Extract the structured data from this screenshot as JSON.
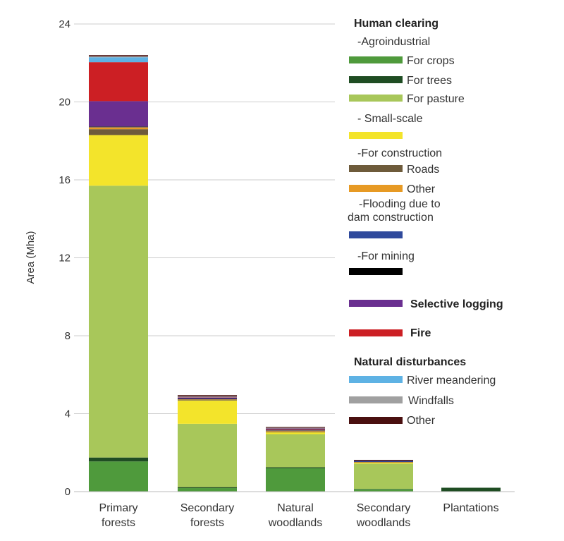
{
  "chart_data": {
    "type": "bar",
    "stacked": true,
    "title": "",
    "xlabel": "",
    "ylabel": "Area (Mha)",
    "ylim": [
      0,
      24
    ],
    "yticks": [
      0,
      4,
      8,
      12,
      16,
      20,
      24
    ],
    "grid": true,
    "legend_position": "right",
    "categories": [
      "Primary\nforests",
      "Secondary\nforests",
      "Natural\nwoodlands",
      "Secondary\nwoodlands",
      "Plantations"
    ],
    "series": [
      {
        "name": "For crops",
        "color": "#4f9a3c",
        "values": [
          1.55,
          0.18,
          1.2,
          0.12,
          0.02
        ]
      },
      {
        "name": "For trees",
        "color": "#1f4d23",
        "values": [
          0.2,
          0.05,
          0.05,
          0.02,
          0.18
        ]
      },
      {
        "name": "For pasture",
        "color": "#a8c75a",
        "values": [
          13.95,
          3.25,
          1.7,
          1.3,
          0.0
        ]
      },
      {
        "name": "Small-scale",
        "color": "#f3e42b",
        "values": [
          2.6,
          1.2,
          0.1,
          0.05,
          0.0
        ]
      },
      {
        "name": "Roads",
        "color": "#6e5b3b",
        "values": [
          0.3,
          0.04,
          0.04,
          0.02,
          0.0
        ]
      },
      {
        "name": "Other",
        "color": "#e79a24",
        "values": [
          0.1,
          0.02,
          0.04,
          0.01,
          0.0
        ]
      },
      {
        "name": "Flooding due to dam construction",
        "color": "#2f4a9c",
        "values": [
          0.02,
          0.02,
          0.03,
          0.05,
          0.0
        ]
      },
      {
        "name": "For mining",
        "color": "#000000",
        "values": [
          0.02,
          0.02,
          0.02,
          0.01,
          0.0
        ]
      },
      {
        "name": "Selective logging",
        "color": "#6a2f90",
        "values": [
          1.3,
          0.04,
          0.02,
          0.02,
          0.0
        ]
      },
      {
        "name": "Fire",
        "color": "#cc1f24",
        "values": [
          2.0,
          0.02,
          0.04,
          0.0,
          0.0
        ]
      },
      {
        "name": "River meandering",
        "color": "#5eb2e4",
        "values": [
          0.25,
          0.02,
          0.02,
          0.0,
          0.0
        ]
      },
      {
        "name": "Windfalls",
        "color": "#a0a0a0",
        "values": [
          0.05,
          0.02,
          0.02,
          0.0,
          0.0
        ]
      },
      {
        "name": "Other",
        "color": "#4a1010",
        "values": [
          0.06,
          0.07,
          0.04,
          0.03,
          0.0
        ]
      }
    ]
  },
  "legend": {
    "human_clearing": "Human clearing",
    "agroindustrial": "-Agroindustrial",
    "for_crops": "For crops",
    "for_trees": "For trees",
    "for_pasture": "For pasture",
    "small_scale": "- Small-scale",
    "for_construction": "-For construction",
    "roads": "Roads",
    "other_construction": "Other",
    "flooding_line1": "-Flooding due to",
    "flooding_line2": "dam construction",
    "for_mining": "-For mining",
    "selective_logging": "Selective logging",
    "fire": "Fire",
    "natural_disturbances": "Natural disturbances",
    "river_meandering": "River meandering",
    "windfalls": "Windfalls",
    "other_natural": "Other",
    "colors": {
      "for_crops": "#4f9a3c",
      "for_trees": "#1f4d23",
      "for_pasture": "#a8c75a",
      "small_scale": "#f3e42b",
      "roads": "#6e5b3b",
      "other_construction": "#e79a24",
      "flooding": "#2f4a9c",
      "for_mining": "#000000",
      "selective_logging": "#6a2f90",
      "fire": "#cc1f24",
      "river_meandering": "#5eb2e4",
      "windfalls": "#a0a0a0",
      "other_natural": "#4a1010"
    }
  }
}
